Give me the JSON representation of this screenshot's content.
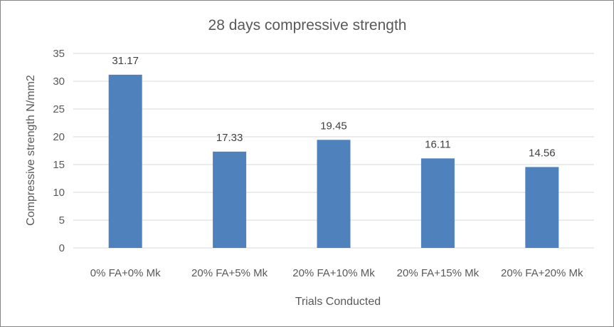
{
  "chart_data": {
    "type": "bar",
    "title": "28 days compressive strength",
    "xlabel": "Trials Conducted",
    "ylabel": "Compressive strength N/mm2",
    "categories": [
      "0% FA+0% Mk",
      "20% FA+5% Mk",
      "20% FA+10% Mk",
      "20% FA+15% Mk",
      "20% FA+20% Mk"
    ],
    "values": [
      31.17,
      17.33,
      19.45,
      16.11,
      14.56
    ],
    "data_labels": [
      "31.17",
      "17.33",
      "19.45",
      "16.11",
      "14.56"
    ],
    "ylim": [
      0,
      35
    ],
    "yticks": [
      0,
      5,
      10,
      15,
      20,
      25,
      30,
      35
    ],
    "ytick_labels": [
      "0",
      "5",
      "10",
      "15",
      "20",
      "25",
      "30",
      "35"
    ],
    "grid": true,
    "legend": "none",
    "bar_color": "#4f81bd",
    "grid_color": "#d9d9d9"
  }
}
